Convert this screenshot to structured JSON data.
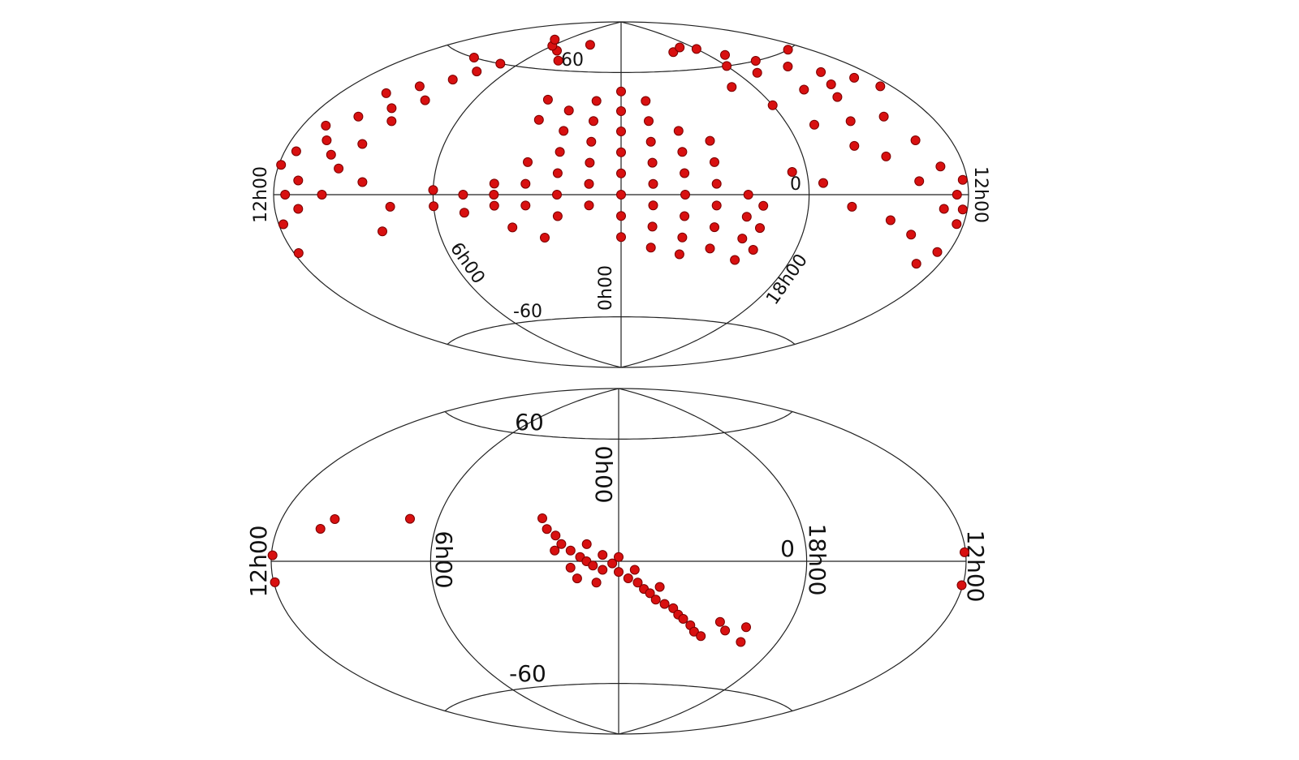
{
  "chart_data": [
    {
      "type": "scatter",
      "projection": "hammer",
      "color": "#d81010",
      "edge_color": "#7a0000",
      "grid": true,
      "xlim": [
        0,
        24
      ],
      "ylim": [
        -90,
        90
      ],
      "xticks": [
        {
          "value": 12,
          "label": "12h00"
        },
        {
          "value": 6,
          "label": "6h00"
        },
        {
          "value": 0,
          "label": "0h00"
        },
        {
          "value": 18,
          "label": "18h00"
        }
      ],
      "yticks": [
        -60,
        0,
        60
      ],
      "x": [
        0,
        0,
        0,
        0,
        0,
        0,
        0,
        0,
        1,
        1,
        1,
        1,
        1,
        1,
        2,
        2,
        2,
        2,
        2,
        2,
        3,
        3,
        3,
        3,
        3,
        4,
        4,
        4,
        5,
        5,
        6,
        6,
        23,
        23,
        23,
        23,
        23,
        23,
        23,
        23,
        22,
        22,
        22,
        22,
        22,
        22,
        22,
        21,
        21,
        21,
        21,
        21,
        21,
        20,
        20,
        20,
        20,
        19.5,
        19.5,
        19.5,
        2.5,
        3.5,
        8,
        8,
        8.5,
        9,
        9,
        9,
        9.5,
        10,
        10,
        10,
        10,
        10.5,
        11,
        11,
        11,
        11.5,
        11.5,
        11.8,
        11.8,
        11.9,
        7.5,
        7,
        9,
        8.5,
        7.5,
        8,
        5,
        6,
        7,
        3,
        4,
        20,
        19,
        18,
        17,
        16,
        15,
        14,
        13,
        18,
        17,
        16,
        15,
        14,
        13.5,
        13,
        12.5,
        12.3,
        12.5,
        13,
        14,
        15,
        16,
        17,
        18,
        19,
        18.5,
        17.5,
        16.5,
        15,
        14,
        13,
        12.2,
        12.2,
        15.5,
        14.5,
        13,
        12.5
      ],
      "y": [
        0,
        10,
        20,
        30,
        40,
        50,
        -10,
        -20,
        5,
        15,
        25,
        35,
        45,
        -5,
        0,
        10,
        20,
        30,
        40,
        -10,
        -5,
        5,
        15,
        35,
        45,
        -5,
        5,
        0,
        0,
        -8,
        -5,
        2,
        5,
        15,
        25,
        35,
        45,
        -5,
        -15,
        -25,
        0,
        10,
        20,
        30,
        -10,
        -20,
        -28,
        -5,
        5,
        15,
        25,
        -15,
        -25,
        -10,
        0,
        -20,
        -30,
        -5,
        -15,
        -25,
        -20,
        -15,
        40,
        50,
        30,
        20,
        35,
        45,
        10,
        0,
        15,
        30,
        40,
        20,
        5,
        25,
        -5,
        15,
        0,
        -10,
        -20,
        10,
        55,
        60,
        60,
        5,
        -5,
        -15,
        70,
        72,
        75,
        75,
        65,
        70,
        72,
        70,
        65,
        60,
        55,
        50,
        45,
        60,
        55,
        45,
        40,
        30,
        20,
        10,
        0,
        -10,
        -20,
        -5,
        5,
        15,
        20,
        30,
        40,
        50,
        10,
        5,
        -5,
        -10,
        -15,
        -25,
        5,
        -5,
        30,
        45,
        60,
        40
      ]
    },
    {
      "type": "scatter",
      "projection": "hammer",
      "color": "#d81010",
      "edge_color": "#7a0000",
      "grid": true,
      "xlim": [
        0,
        24
      ],
      "ylim": [
        -90,
        90
      ],
      "xticks": [
        {
          "value": 12,
          "label": "12h00"
        },
        {
          "value": 6,
          "label": "6h00"
        },
        {
          "value": 0,
          "label": "0h00"
        },
        {
          "value": 18,
          "label": "18h00"
        }
      ],
      "yticks": [
        -60,
        0,
        60
      ],
      "x": [
        2.5,
        2.3,
        2,
        1.8,
        1.5,
        1.2,
        1,
        0.8,
        0.5,
        0.2,
        0,
        0,
        23.7,
        23.4,
        23.2,
        23,
        22.8,
        22.5,
        22.2,
        22,
        21.8,
        21.5,
        21.3,
        21,
        20.5,
        20.2,
        1.5,
        2,
        1,
        0.5,
        23.5,
        22.7,
        1.3,
        0.7,
        7,
        9.8,
        10.2,
        11.95,
        11.95,
        12.05,
        12.05,
        19.5,
        19.4
      ],
      "y": [
        20,
        15,
        12,
        8,
        5,
        2,
        0,
        -2,
        -4,
        -1,
        -5,
        2,
        -8,
        -10,
        -13,
        -15,
        -18,
        -20,
        -22,
        -25,
        -27,
        -30,
        -33,
        -35,
        -28,
        -32,
        -3,
        5,
        8,
        3,
        -4,
        -12,
        -8,
        -10,
        18,
        16,
        12,
        2,
        -7,
        3,
        -8,
        -30,
        -37
      ]
    }
  ]
}
